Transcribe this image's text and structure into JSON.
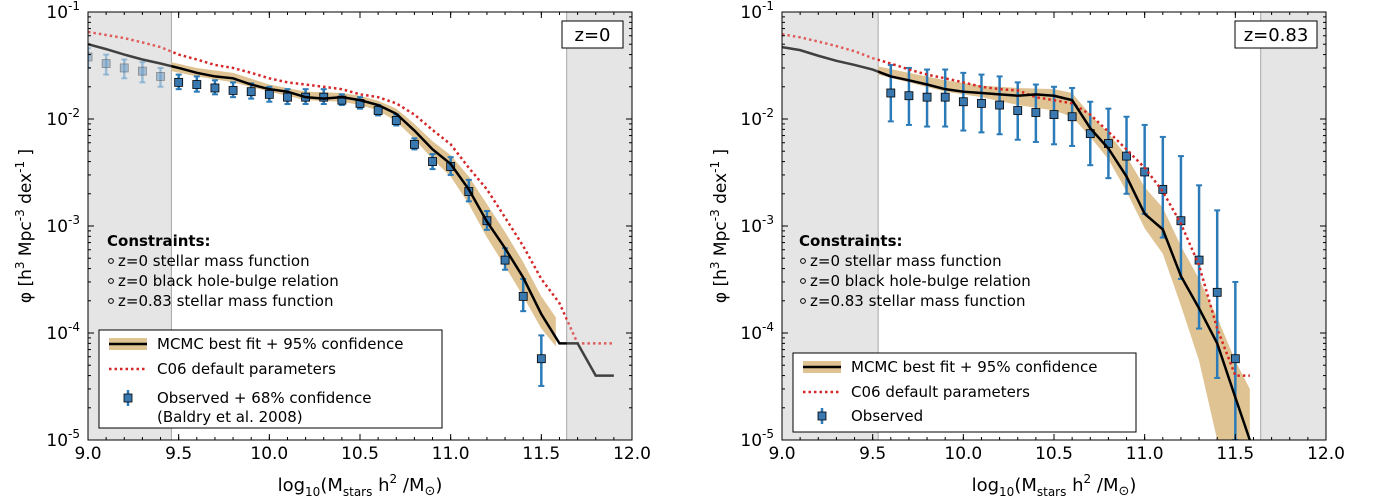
{
  "chart_data": [
    {
      "type": "line",
      "panel_label": "z=0",
      "xlabel": "log10(Mstars h2 /M⊙)",
      "ylabel": "φ [h3 Mpc-3 dex-1 ]",
      "xlim": [
        9.0,
        12.0
      ],
      "ylim_log10": [
        -5,
        -1
      ],
      "y_scale": "log",
      "x_ticks": [
        "9.0",
        "9.5",
        "10.0",
        "10.5",
        "11.0",
        "11.5",
        "12.0"
      ],
      "y_ticks": [
        {
          "base": "10",
          "exp": "-1"
        },
        {
          "base": "10",
          "exp": "-2"
        },
        {
          "base": "10",
          "exp": "-3"
        },
        {
          "base": "10",
          "exp": "-4"
        },
        {
          "base": "10",
          "exp": "-5"
        }
      ],
      "excluded_x_ranges": [
        [
          9.0,
          9.46
        ],
        [
          11.64,
          12.0
        ]
      ],
      "constraints_title": "Constraints:",
      "constraints": [
        "z=0 stellar mass function",
        "z=0 black hole-bulge relation",
        "z=0.83 stellar mass function"
      ],
      "legend": [
        {
          "key": "mcmc",
          "label": "MCMC best fit + 95% confidence"
        },
        {
          "key": "c06",
          "label": "C06 default parameters"
        },
        {
          "key": "obs",
          "label": "Observed + 68% confidence",
          "label2": "(Baldry et al. 2008)"
        }
      ],
      "colors": {
        "mcmc": "#000000",
        "band": "#dfc393",
        "c06": "#d62728",
        "obs_marker": "#3a79b0",
        "obs_err": "#2b7bb9",
        "shade": "#dcdcdc"
      },
      "series": [
        {
          "key": "mcmc",
          "x": [
            9.0,
            9.1,
            9.2,
            9.3,
            9.4,
            9.5,
            9.6,
            9.7,
            9.8,
            9.9,
            10.0,
            10.1,
            10.2,
            10.3,
            10.4,
            10.5,
            10.6,
            10.7,
            10.8,
            10.9,
            11.0,
            11.1,
            11.2,
            11.3,
            11.4,
            11.5,
            11.6,
            11.7,
            11.8,
            11.9
          ],
          "y": [
            0.05,
            0.045,
            0.04,
            0.036,
            0.033,
            0.03,
            0.027,
            0.025,
            0.024,
            0.021,
            0.019,
            0.018,
            0.016,
            0.0155,
            0.016,
            0.015,
            0.0135,
            0.0112,
            0.0078,
            0.0052,
            0.0038,
            0.0022,
            0.0011,
            0.00062,
            0.00033,
            0.00015,
            8e-05,
            8e-05,
            4e-05,
            4e-05
          ]
        },
        {
          "key": "band_low",
          "x": [
            9.46,
            9.6,
            9.8,
            10.0,
            10.2,
            10.4,
            10.5,
            10.6,
            10.7,
            10.8,
            10.9,
            11.0,
            11.1,
            11.2,
            11.3,
            11.4,
            11.5,
            11.58
          ],
          "y": [
            0.028,
            0.025,
            0.022,
            0.018,
            0.015,
            0.0145,
            0.0135,
            0.012,
            0.0095,
            0.0065,
            0.0042,
            0.0029,
            0.0016,
            0.00078,
            0.00042,
            0.00022,
            0.00011,
            7.5e-05
          ]
        },
        {
          "key": "band_high",
          "x": [
            9.46,
            9.6,
            9.8,
            10.0,
            10.2,
            10.4,
            10.5,
            10.6,
            10.7,
            10.8,
            10.9,
            11.0,
            11.1,
            11.2,
            11.3,
            11.4,
            11.5,
            11.58
          ],
          "y": [
            0.034,
            0.03,
            0.027,
            0.021,
            0.018,
            0.0175,
            0.0165,
            0.0148,
            0.0125,
            0.009,
            0.0062,
            0.0046,
            0.0029,
            0.0016,
            0.00088,
            0.00046,
            0.00022,
            0.00014
          ]
        },
        {
          "key": "c06",
          "x": [
            9.0,
            9.1,
            9.2,
            9.3,
            9.4,
            9.5,
            9.6,
            9.7,
            9.8,
            9.9,
            10.0,
            10.1,
            10.2,
            10.3,
            10.4,
            10.5,
            10.6,
            10.7,
            10.8,
            10.9,
            11.0,
            11.1,
            11.2,
            11.3,
            11.4,
            11.5,
            11.6,
            11.7,
            11.8,
            11.9
          ],
          "y": [
            0.065,
            0.061,
            0.057,
            0.052,
            0.047,
            0.04,
            0.036,
            0.032,
            0.03,
            0.027,
            0.024,
            0.022,
            0.021,
            0.02,
            0.019,
            0.017,
            0.016,
            0.014,
            0.011,
            0.0079,
            0.0058,
            0.0035,
            0.0022,
            0.0012,
            0.00065,
            0.00032,
            0.00019,
            8e-05,
            8e-05,
            8e-05
          ]
        },
        {
          "key": "obs",
          "x": [
            9.0,
            9.1,
            9.2,
            9.3,
            9.4,
            9.5,
            9.6,
            9.7,
            9.8,
            9.9,
            10.0,
            10.1,
            10.2,
            10.3,
            10.4,
            10.5,
            10.6,
            10.7,
            10.8,
            10.9,
            11.0,
            11.1,
            11.2,
            11.3,
            11.4,
            11.5
          ],
          "y": [
            0.038,
            0.033,
            0.03,
            0.028,
            0.025,
            0.022,
            0.021,
            0.0195,
            0.0185,
            0.018,
            0.017,
            0.016,
            0.016,
            0.016,
            0.015,
            0.014,
            0.012,
            0.0097,
            0.0058,
            0.004,
            0.0036,
            0.0021,
            0.00112,
            0.00048,
            0.00022,
            5.75e-05
          ],
          "yerr_low": [
            0.03,
            0.026,
            0.024,
            0.022,
            0.02,
            0.019,
            0.018,
            0.017,
            0.016,
            0.0155,
            0.0145,
            0.0138,
            0.0138,
            0.0138,
            0.0135,
            0.0125,
            0.0108,
            0.0087,
            0.0052,
            0.0034,
            0.003,
            0.0017,
            0.00092,
            0.00039,
            0.00016,
            3.2e-05
          ],
          "yerr_high": [
            0.046,
            0.04,
            0.036,
            0.034,
            0.03,
            0.026,
            0.025,
            0.023,
            0.022,
            0.0215,
            0.02,
            0.019,
            0.019,
            0.019,
            0.017,
            0.016,
            0.0135,
            0.011,
            0.0066,
            0.0047,
            0.0044,
            0.0027,
            0.00138,
            0.00062,
            0.00032,
            9.5e-05
          ]
        }
      ]
    },
    {
      "type": "line",
      "panel_label": "z=0.83",
      "xlabel": "log10(Mstars h2 /M⊙)",
      "ylabel": "φ [h3 Mpc-3 dex-1 ]",
      "xlim": [
        9.0,
        12.0
      ],
      "ylim_log10": [
        -5,
        -1
      ],
      "y_scale": "log",
      "x_ticks": [
        "9.0",
        "9.5",
        "10.0",
        "10.5",
        "11.0",
        "11.5",
        "12.0"
      ],
      "y_ticks": [
        {
          "base": "10",
          "exp": "-1"
        },
        {
          "base": "10",
          "exp": "-2"
        },
        {
          "base": "10",
          "exp": "-3"
        },
        {
          "base": "10",
          "exp": "-4"
        },
        {
          "base": "10",
          "exp": "-5"
        }
      ],
      "excluded_x_ranges": [
        [
          9.0,
          9.53
        ],
        [
          11.64,
          12.0
        ]
      ],
      "constraints_title": "Constraints:",
      "constraints": [
        "z=0 stellar mass function",
        "z=0 black hole-bulge relation",
        "z=0.83 stellar mass function"
      ],
      "legend": [
        {
          "key": "mcmc",
          "label": "MCMC best fit + 95% confidence"
        },
        {
          "key": "c06",
          "label": "C06 default parameters"
        },
        {
          "key": "obs",
          "label": "Observed",
          "label2": ""
        }
      ],
      "colors": {
        "mcmc": "#000000",
        "band": "#dfc393",
        "c06": "#d62728",
        "obs_marker": "#3a79b0",
        "obs_err": "#2b7bb9",
        "shade": "#dcdcdc"
      },
      "series": [
        {
          "key": "mcmc",
          "x": [
            9.0,
            9.1,
            9.2,
            9.3,
            9.4,
            9.5,
            9.6,
            9.7,
            9.8,
            9.9,
            10.0,
            10.1,
            10.2,
            10.3,
            10.4,
            10.5,
            10.6,
            10.7,
            10.8,
            10.9,
            11.0,
            11.1,
            11.2,
            11.3,
            11.4,
            11.5,
            11.58
          ],
          "y": [
            0.047,
            0.044,
            0.039,
            0.035,
            0.032,
            0.029,
            0.025,
            0.023,
            0.021,
            0.019,
            0.018,
            0.0175,
            0.017,
            0.0165,
            0.017,
            0.0165,
            0.015,
            0.0082,
            0.0053,
            0.0029,
            0.0013,
            0.00093,
            0.00034,
            0.00017,
            8e-05,
            2.5e-05,
            1e-05
          ]
        },
        {
          "key": "band_low",
          "x": [
            9.53,
            9.7,
            9.9,
            10.1,
            10.3,
            10.5,
            10.6,
            10.7,
            10.8,
            10.9,
            11.0,
            11.1,
            11.2,
            11.3,
            11.4
          ],
          "y": [
            0.026,
            0.022,
            0.018,
            0.016,
            0.0135,
            0.012,
            0.0105,
            0.0068,
            0.0042,
            0.0021,
            0.00095,
            0.00055,
            0.00018,
            5.5e-05,
            1e-05
          ]
        },
        {
          "key": "band_high",
          "x": [
            9.53,
            9.7,
            9.9,
            10.1,
            10.3,
            10.5,
            10.6,
            10.7,
            10.8,
            10.9,
            11.0,
            11.1,
            11.2,
            11.3,
            11.4,
            11.5,
            11.58
          ],
          "y": [
            0.031,
            0.027,
            0.023,
            0.0205,
            0.0195,
            0.019,
            0.0175,
            0.011,
            0.0074,
            0.0045,
            0.0023,
            0.00148,
            0.00065,
            0.00032,
            0.00014,
            5.5e-05,
            3e-05
          ]
        },
        {
          "key": "c06",
          "x": [
            9.0,
            9.1,
            9.2,
            9.3,
            9.4,
            9.5,
            9.6,
            9.7,
            9.8,
            9.9,
            10.0,
            10.1,
            10.2,
            10.3,
            10.4,
            10.5,
            10.6,
            10.7,
            10.8,
            10.9,
            11.0,
            11.1,
            11.2,
            11.3,
            11.4,
            11.5,
            11.58
          ],
          "y": [
            0.062,
            0.058,
            0.053,
            0.048,
            0.043,
            0.037,
            0.033,
            0.029,
            0.026,
            0.024,
            0.022,
            0.02,
            0.019,
            0.0185,
            0.016,
            0.015,
            0.014,
            0.011,
            0.0076,
            0.0052,
            0.0035,
            0.0021,
            0.00105,
            0.00043,
            0.00011,
            4e-05,
            4e-05
          ]
        },
        {
          "key": "obs",
          "x": [
            9.6,
            9.7,
            9.8,
            9.9,
            10.0,
            10.1,
            10.2,
            10.3,
            10.4,
            10.5,
            10.6,
            10.7,
            10.8,
            10.9,
            11.0,
            11.1,
            11.2,
            11.3,
            11.4,
            11.5
          ],
          "y": [
            0.0175,
            0.0165,
            0.016,
            0.016,
            0.0145,
            0.014,
            0.0135,
            0.012,
            0.0115,
            0.011,
            0.0105,
            0.0073,
            0.0059,
            0.0045,
            0.0032,
            0.0022,
            0.00112,
            0.00048,
            0.00024,
            5.75e-05
          ],
          "yerr_low": [
            0.0095,
            0.0088,
            0.0085,
            0.0085,
            0.0078,
            0.0075,
            0.0072,
            0.0064,
            0.0061,
            0.0058,
            0.0056,
            0.0037,
            0.0028,
            0.002,
            0.0013,
            0.00078,
            0.00032,
            0.00011,
            3.8e-05,
            1e-05
          ],
          "yerr_high": [
            0.032,
            0.03,
            0.029,
            0.029,
            0.027,
            0.026,
            0.025,
            0.022,
            0.021,
            0.02,
            0.0195,
            0.0145,
            0.0125,
            0.0105,
            0.0088,
            0.0068,
            0.0045,
            0.0024,
            0.0014,
            0.0003
          ]
        }
      ]
    }
  ]
}
